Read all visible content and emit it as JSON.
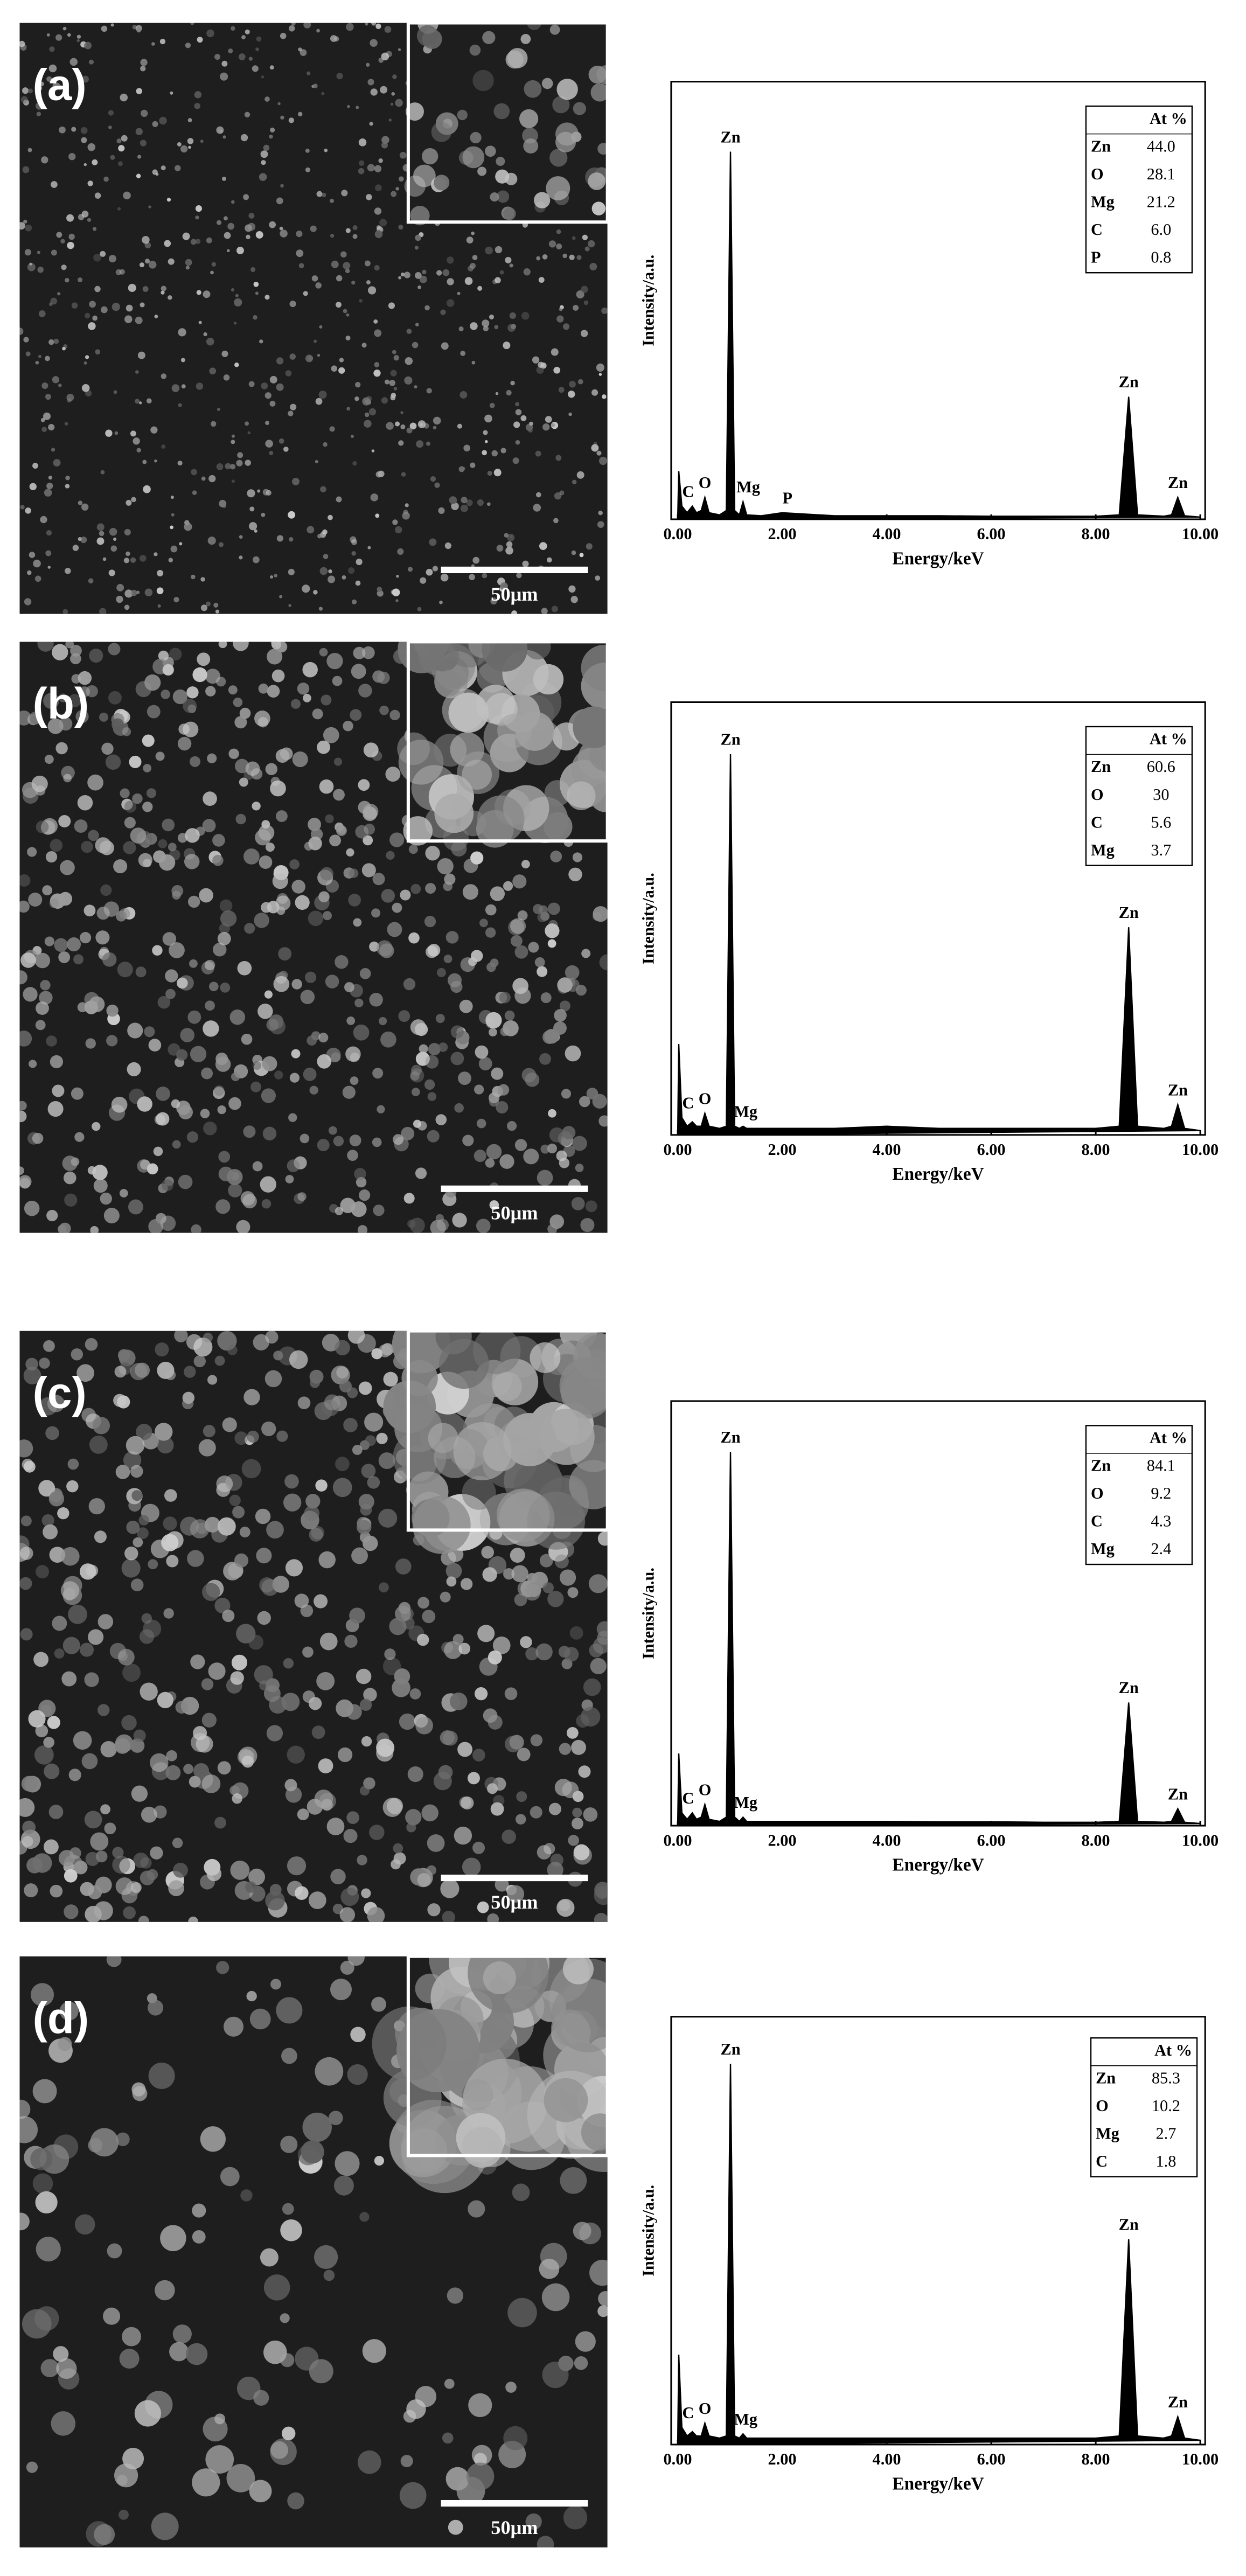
{
  "chart_data": [
    {
      "type": "line",
      "panel": "(a)",
      "scale_bar": "50μm",
      "xlabel": "Energy/keV",
      "ylabel": "Intensity/a.u.",
      "color": "#000000",
      "x": [
        0,
        0.02,
        0.08,
        0.18,
        0.28,
        0.36,
        0.45,
        0.52,
        0.6,
        0.8,
        0.93,
        1.01,
        1.09,
        1.18,
        1.25,
        1.32,
        1.6,
        2.0,
        3.0,
        4.0,
        5.0,
        6.0,
        7.0,
        8.0,
        8.45,
        8.63,
        8.8,
        9.3,
        9.45,
        9.57,
        9.7,
        10.0
      ],
      "values": [
        0,
        11,
        3,
        1.5,
        3,
        1.5,
        2,
        5,
        1.5,
        1,
        2,
        84,
        2,
        1,
        4,
        1,
        0.8,
        1.5,
        0.8,
        0.8,
        0.8,
        0.7,
        0.7,
        0.7,
        1,
        28,
        1,
        0.7,
        1,
        5,
        0.8,
        0.5
      ],
      "xlim": [
        0,
        10
      ],
      "ylim": [
        0,
        100
      ],
      "xticks": [
        {
          "value": 0,
          "label": "0.00"
        },
        {
          "value": 2,
          "label": "2.00"
        },
        {
          "value": 4,
          "label": "4.00"
        },
        {
          "value": 6,
          "label": "6.00"
        },
        {
          "value": 8,
          "label": "8.00"
        },
        {
          "value": 10,
          "label": "10.00"
        }
      ],
      "annotations": [
        "Zn",
        "C",
        "O",
        "Mg",
        "P",
        "Zn",
        "Zn"
      ],
      "table": {
        "header": "At %",
        "rows": [
          [
            "Zn",
            "44.0"
          ],
          [
            "O",
            "28.1"
          ],
          [
            "Mg",
            "21.2"
          ],
          [
            "C",
            "6.0"
          ],
          [
            "P",
            "0.8"
          ]
        ]
      }
    },
    {
      "type": "line",
      "panel": "(b)",
      "scale_bar": "50μm",
      "xlabel": "Energy/keV",
      "ylabel": "Intensity/a.u.",
      "color": "#000000",
      "x": [
        0,
        0.02,
        0.08,
        0.18,
        0.28,
        0.36,
        0.45,
        0.52,
        0.6,
        0.8,
        0.93,
        1.01,
        1.09,
        1.18,
        1.25,
        1.32,
        1.6,
        2.0,
        3.0,
        4.0,
        5.0,
        6.0,
        7.0,
        8.0,
        8.45,
        8.63,
        8.8,
        9.3,
        9.45,
        9.57,
        9.7,
        10.0
      ],
      "values": [
        0,
        21,
        4,
        2,
        3,
        2,
        2,
        5,
        2,
        1.5,
        2,
        88,
        2,
        1.5,
        2,
        1.5,
        1.5,
        1.5,
        1.5,
        2,
        1.5,
        1.5,
        1.5,
        1.5,
        2,
        48,
        2,
        1.5,
        2,
        7,
        1.5,
        1
      ],
      "xlim": [
        0,
        10
      ],
      "ylim": [
        0,
        100
      ],
      "xticks": [
        {
          "value": 0,
          "label": "0.00"
        },
        {
          "value": 2,
          "label": "2.00"
        },
        {
          "value": 4,
          "label": "4.00"
        },
        {
          "value": 6,
          "label": "6.00"
        },
        {
          "value": 8,
          "label": "8.00"
        },
        {
          "value": 10,
          "label": "10.00"
        }
      ],
      "annotations": [
        "Zn",
        "C",
        "O",
        "Mg",
        "Zn",
        "Zn"
      ],
      "table": {
        "header": "At %",
        "rows": [
          [
            "Zn",
            "60.6"
          ],
          [
            "O",
            "30"
          ],
          [
            "C",
            "5.6"
          ],
          [
            "Mg",
            "3.7"
          ]
        ]
      }
    },
    {
      "type": "line",
      "panel": "(c)",
      "scale_bar": "50μm",
      "xlabel": "Energy/keV",
      "ylabel": "Intensity/a.u.",
      "color": "#000000",
      "x": [
        0,
        0.02,
        0.08,
        0.18,
        0.28,
        0.36,
        0.45,
        0.52,
        0.6,
        0.8,
        0.93,
        1.01,
        1.09,
        1.18,
        1.25,
        1.32,
        1.6,
        2.0,
        3.0,
        4.0,
        5.0,
        6.0,
        7.0,
        8.0,
        8.45,
        8.63,
        8.8,
        9.3,
        9.45,
        9.57,
        9.7,
        10.0
      ],
      "values": [
        0,
        17,
        3,
        1.5,
        3,
        1.5,
        2,
        5,
        1.5,
        1,
        2,
        88,
        2,
        1,
        2,
        1,
        1,
        1,
        1,
        1,
        0.9,
        0.9,
        0.8,
        0.8,
        1,
        29,
        1,
        0.8,
        1,
        4,
        0.8,
        0.5
      ],
      "xlim": [
        0,
        10
      ],
      "ylim": [
        0,
        100
      ],
      "xticks": [
        {
          "value": 0,
          "label": "0.00"
        },
        {
          "value": 2,
          "label": "2.00"
        },
        {
          "value": 4,
          "label": "4.00"
        },
        {
          "value": 6,
          "label": "6.00"
        },
        {
          "value": 8,
          "label": "8.00"
        },
        {
          "value": 10,
          "label": "10.00"
        }
      ],
      "annotations": [
        "Zn",
        "C",
        "O",
        "Mg",
        "Zn",
        "Zn"
      ],
      "table": {
        "header": "At %",
        "rows": [
          [
            "Zn",
            "84.1"
          ],
          [
            "O",
            "9.2"
          ],
          [
            "C",
            "4.3"
          ],
          [
            "Mg",
            "2.4"
          ]
        ]
      }
    },
    {
      "type": "line",
      "panel": "(d)",
      "scale_bar": "50μm",
      "xlabel": "Energy/keV",
      "ylabel": "Intensity/a.u.",
      "color": "#000000",
      "x": [
        0,
        0.02,
        0.08,
        0.18,
        0.28,
        0.36,
        0.45,
        0.52,
        0.6,
        0.8,
        0.93,
        1.01,
        1.09,
        1.18,
        1.25,
        1.32,
        1.6,
        2.0,
        3.0,
        4.0,
        5.0,
        6.0,
        7.0,
        8.0,
        8.45,
        8.63,
        8.8,
        9.3,
        9.45,
        9.57,
        9.7,
        10.0
      ],
      "values": [
        0,
        21,
        4,
        2,
        3,
        2,
        2,
        5,
        2,
        1.5,
        2,
        89,
        2,
        1.5,
        2.5,
        1.5,
        1.5,
        1.5,
        1.5,
        1.5,
        1.5,
        1.5,
        1.5,
        1.5,
        2,
        48,
        2,
        1.5,
        2,
        6.5,
        1.5,
        1
      ],
      "xlim": [
        0,
        10
      ],
      "ylim": [
        0,
        100
      ],
      "xticks": [
        {
          "value": 0,
          "label": "0.00"
        },
        {
          "value": 2,
          "label": "2.00"
        },
        {
          "value": 4,
          "label": "4.00"
        },
        {
          "value": 6,
          "label": "6.00"
        },
        {
          "value": 8,
          "label": "8.00"
        },
        {
          "value": 10,
          "label": "10.00"
        }
      ],
      "annotations": [
        "Zn",
        "C",
        "O",
        "Mg",
        "Zn",
        "Zn"
      ],
      "table": {
        "header": "At %",
        "rows": [
          [
            "Zn",
            "85.3"
          ],
          [
            "O",
            "10.2"
          ],
          [
            "Mg",
            "2.7"
          ],
          [
            "C",
            "1.8"
          ]
        ]
      }
    }
  ]
}
